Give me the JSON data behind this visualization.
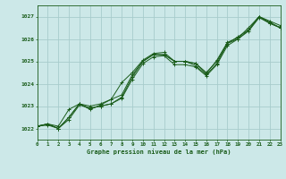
{
  "title": "Graphe pression niveau de la mer (hPa)",
  "background_color": "#cce8e8",
  "grid_color": "#a8cccc",
  "line_color": "#1a5c1a",
  "x_min": 0,
  "x_max": 23,
  "y_min": 1021.5,
  "y_max": 1027.5,
  "yticks": [
    1022,
    1023,
    1024,
    1025,
    1026,
    1027
  ],
  "xticks": [
    0,
    1,
    2,
    3,
    4,
    5,
    6,
    7,
    8,
    9,
    10,
    11,
    12,
    13,
    14,
    15,
    16,
    17,
    18,
    19,
    20,
    21,
    22,
    23
  ],
  "series": [
    [
      1022.1,
      1022.2,
      1022.0,
      1022.5,
      1023.1,
      1023.0,
      1023.1,
      1023.3,
      1023.5,
      1024.4,
      1025.0,
      1025.3,
      1025.3,
      1025.0,
      1025.0,
      1024.9,
      1024.5,
      1025.0,
      1025.8,
      1026.1,
      1026.4,
      1027.0,
      1026.8,
      1026.6
    ],
    [
      1022.1,
      1022.15,
      1022.0,
      1022.4,
      1023.05,
      1022.9,
      1023.0,
      1023.1,
      1023.35,
      1024.2,
      1024.9,
      1025.2,
      1025.25,
      1024.85,
      1024.85,
      1024.75,
      1024.35,
      1024.85,
      1025.7,
      1026.0,
      1026.35,
      1026.95,
      1026.7,
      1026.5
    ],
    [
      1022.1,
      1022.2,
      1022.1,
      1022.85,
      1023.1,
      1022.85,
      1023.05,
      1023.3,
      1024.05,
      1024.5,
      1025.05,
      1025.35,
      1025.4,
      1025.0,
      1025.0,
      1024.9,
      1024.45,
      1025.05,
      1025.85,
      1026.05,
      1026.5,
      1027.0,
      1026.75,
      1026.5
    ],
    [
      1022.1,
      1022.2,
      1022.0,
      1022.5,
      1023.1,
      1022.9,
      1023.0,
      1023.1,
      1023.4,
      1024.3,
      1025.0,
      1025.3,
      1025.3,
      1025.0,
      1025.0,
      1024.8,
      1024.4,
      1024.9,
      1025.8,
      1026.0,
      1026.4,
      1027.0,
      1026.7,
      1026.5
    ]
  ],
  "marker": "+",
  "markersize": 2.5,
  "linewidth": 0.7
}
